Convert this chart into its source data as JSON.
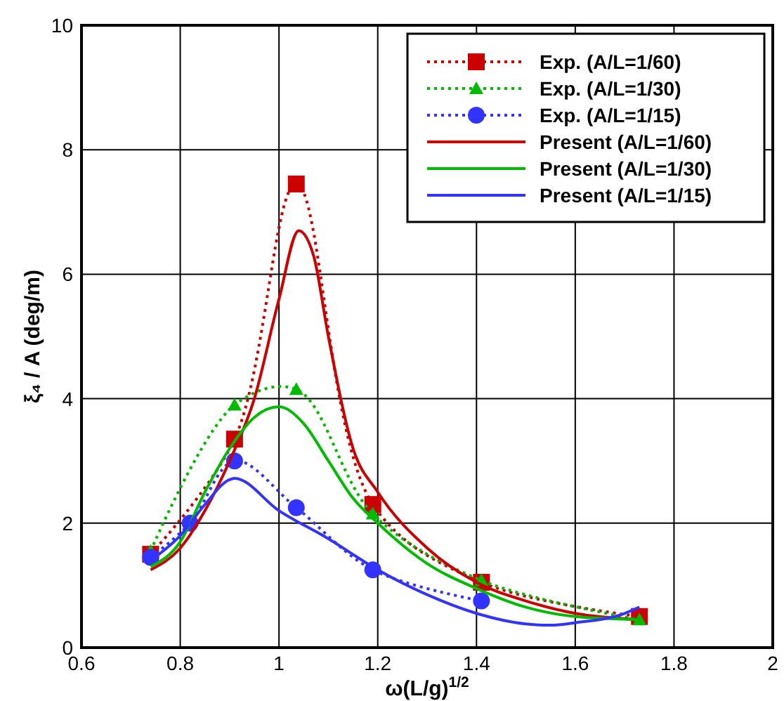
{
  "chart_data": {
    "type": "line",
    "xlabel": "ω(L/g)$^{1/2}$",
    "ylabel": "ξ₄ / A (deg/m)",
    "xlim": [
      0.6,
      2
    ],
    "xticks": [
      0.6,
      0.8,
      1,
      1.2,
      1.4,
      1.6,
      1.8,
      2
    ],
    "ylim": [
      0,
      10
    ],
    "yticks": [
      0,
      2,
      4,
      6,
      8,
      10
    ],
    "grid": true,
    "legend": "top right",
    "series": [
      {
        "name": "Exp. (A/L=1/60)",
        "color": "#cc0000",
        "marker": "square",
        "line_style": "dotted",
        "x": [
          0.74,
          0.91,
          1.035,
          1.19,
          1.41,
          1.73
        ],
        "values": [
          1.5,
          3.35,
          7.45,
          2.3,
          1.05,
          0.5
        ]
      },
      {
        "name": "Exp. (A/L=1/30)",
        "color": "#00bb00",
        "marker": "triangle",
        "line_style": "dotted",
        "x": [
          0.74,
          0.91,
          1.035,
          1.19,
          1.41,
          1.73
        ],
        "values": [
          1.55,
          3.9,
          4.15,
          2.15,
          1.08,
          0.45
        ]
      },
      {
        "name": "Exp. (A/L=1/15)",
        "color": "#3333ff",
        "marker": "circle",
        "line_style": "dotted",
        "x": [
          0.74,
          0.82,
          0.91,
          1.035,
          1.19,
          1.41
        ],
        "values": [
          1.45,
          2.0,
          3.0,
          2.25,
          1.25,
          0.75
        ]
      },
      {
        "name": "Present (A/L=1/60)",
        "color": "#cc0000",
        "marker": "none",
        "line_style": "solid",
        "x": [
          0.74,
          0.8,
          0.85,
          0.9,
          0.95,
          1.0,
          1.04,
          1.07,
          1.1,
          1.15,
          1.2,
          1.3,
          1.4,
          1.5,
          1.6,
          1.73
        ],
        "values": [
          1.25,
          1.6,
          2.2,
          3.0,
          4.0,
          5.6,
          6.7,
          6.3,
          5.0,
          3.2,
          2.5,
          1.6,
          1.05,
          0.75,
          0.55,
          0.45
        ]
      },
      {
        "name": "Present (A/L=1/30)",
        "color": "#00bb00",
        "marker": "none",
        "line_style": "solid",
        "x": [
          0.74,
          0.8,
          0.85,
          0.9,
          0.95,
          1.0,
          1.05,
          1.1,
          1.15,
          1.2,
          1.3,
          1.4,
          1.5,
          1.6,
          1.73
        ],
        "values": [
          1.3,
          1.7,
          2.5,
          3.2,
          3.7,
          3.87,
          3.6,
          3.0,
          2.4,
          2.0,
          1.35,
          0.95,
          0.65,
          0.5,
          0.45
        ]
      },
      {
        "name": "Present (A/L=1/15)",
        "color": "#3333ff",
        "marker": "none",
        "line_style": "solid",
        "x": [
          0.74,
          0.8,
          0.85,
          0.9,
          0.91,
          1.0,
          1.1,
          1.2,
          1.3,
          1.4,
          1.5,
          1.55,
          1.6,
          1.7,
          1.73
        ],
        "values": [
          1.4,
          1.8,
          2.3,
          2.7,
          2.72,
          2.2,
          1.75,
          1.25,
          0.85,
          0.55,
          0.38,
          0.36,
          0.4,
          0.55,
          0.65
        ]
      }
    ]
  }
}
